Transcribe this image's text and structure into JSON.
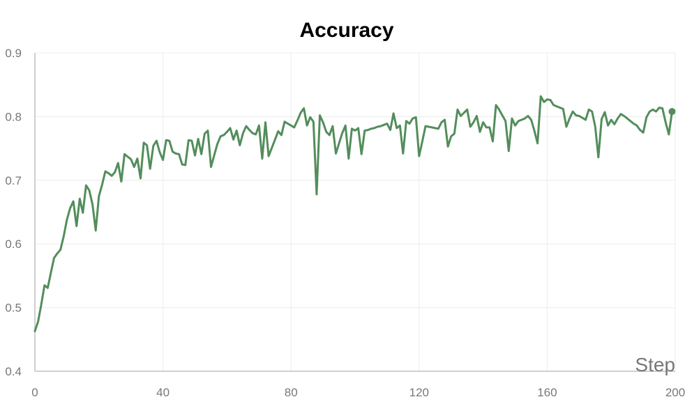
{
  "chart_data": {
    "type": "line",
    "title": "Accuracy",
    "xlabel": "Step",
    "ylabel": "",
    "xlim": [
      0,
      200
    ],
    "ylim": [
      0.4,
      0.9
    ],
    "xticks": [
      0,
      40,
      80,
      120,
      160,
      200
    ],
    "yticks": [
      0.4,
      0.5,
      0.6,
      0.7,
      0.8,
      0.9
    ],
    "xtick_labels": [
      "0",
      "40",
      "80",
      "120",
      "160",
      "200"
    ],
    "ytick_labels": [
      "0.4",
      "0.5",
      "0.6",
      "0.7",
      "0.8",
      "0.9"
    ],
    "grid": true,
    "legend": "none",
    "colors": {
      "series": "#538d5b",
      "grid": "#ececec",
      "axis": "#cfcfcf",
      "tick_text": "#777777"
    },
    "series": [
      {
        "x": [
          0,
          1,
          2,
          3,
          4,
          5,
          6,
          7,
          8,
          9,
          10,
          11,
          12,
          13,
          14,
          15,
          16,
          17,
          18,
          19,
          20,
          21,
          22,
          23,
          24,
          25,
          26,
          27,
          28,
          29,
          30,
          31,
          32,
          33,
          34,
          35,
          36,
          37,
          38,
          39,
          40,
          41,
          42,
          43,
          44,
          45,
          46,
          47,
          48,
          49,
          50,
          51,
          52,
          53,
          54,
          55,
          56,
          57,
          58,
          59,
          60,
          61,
          62,
          63,
          64,
          65,
          66,
          67,
          68,
          69,
          70,
          71,
          72,
          73,
          74,
          75,
          76,
          77,
          78,
          79,
          80,
          81,
          82,
          83,
          84,
          85,
          86,
          87,
          88,
          89,
          90,
          91,
          92,
          93,
          94,
          95,
          96,
          97,
          98,
          99,
          100,
          101,
          102,
          103,
          104,
          105,
          106,
          107,
          108,
          109,
          110,
          111,
          112,
          113,
          114,
          115,
          116,
          117,
          118,
          119,
          120,
          121,
          122,
          123,
          124,
          125,
          126,
          127,
          128,
          129,
          130,
          131,
          132,
          133,
          134,
          135,
          136,
          137,
          138,
          139,
          140,
          141,
          142,
          143,
          144,
          145,
          146,
          147,
          148,
          149,
          150,
          151,
          152,
          153,
          154,
          155,
          156,
          157,
          158,
          159,
          160,
          161,
          162,
          163,
          164,
          165,
          166,
          167,
          168,
          169,
          170,
          171,
          172,
          173,
          174,
          175,
          176,
          177,
          178,
          179,
          180,
          181,
          182,
          183,
          184,
          185,
          186,
          187,
          188,
          189,
          190,
          191,
          192,
          193,
          194,
          195,
          196,
          197,
          198,
          199
        ],
        "y": [
          0.463,
          0.478,
          0.505,
          0.535,
          0.531,
          0.555,
          0.578,
          0.585,
          0.591,
          0.612,
          0.638,
          0.656,
          0.667,
          0.628,
          0.671,
          0.649,
          0.692,
          0.684,
          0.662,
          0.621,
          0.675,
          0.693,
          0.714,
          0.711,
          0.707,
          0.713,
          0.727,
          0.698,
          0.741,
          0.737,
          0.733,
          0.721,
          0.734,
          0.703,
          0.759,
          0.755,
          0.718,
          0.754,
          0.762,
          0.744,
          0.732,
          0.763,
          0.762,
          0.745,
          0.742,
          0.741,
          0.725,
          0.724,
          0.763,
          0.762,
          0.739,
          0.765,
          0.741,
          0.773,
          0.778,
          0.721,
          0.739,
          0.757,
          0.769,
          0.771,
          0.776,
          0.782,
          0.764,
          0.778,
          0.755,
          0.774,
          0.785,
          0.779,
          0.774,
          0.772,
          0.786,
          0.734,
          0.791,
          0.738,
          0.751,
          0.764,
          0.777,
          0.771,
          0.792,
          0.789,
          0.786,
          0.783,
          0.794,
          0.806,
          0.813,
          0.786,
          0.799,
          0.792,
          0.678,
          0.802,
          0.791,
          0.776,
          0.771,
          0.785,
          0.742,
          0.758,
          0.774,
          0.786,
          0.734,
          0.781,
          0.778,
          0.782,
          0.741,
          0.778,
          0.779,
          0.781,
          0.782,
          0.784,
          0.785,
          0.787,
          0.789,
          0.779,
          0.805,
          0.782,
          0.786,
          0.742,
          0.793,
          0.789,
          0.797,
          0.799,
          0.738,
          0.761,
          0.785,
          0.784,
          0.783,
          0.782,
          0.781,
          0.791,
          0.795,
          0.753,
          0.769,
          0.773,
          0.811,
          0.801,
          0.806,
          0.811,
          0.784,
          0.791,
          0.801,
          0.776,
          0.791,
          0.783,
          0.783,
          0.761,
          0.818,
          0.811,
          0.802,
          0.793,
          0.746,
          0.797,
          0.786,
          0.793,
          0.795,
          0.797,
          0.801,
          0.795,
          0.778,
          0.758,
          0.832,
          0.823,
          0.827,
          0.826,
          0.818,
          0.816,
          0.814,
          0.812,
          0.784,
          0.797,
          0.808,
          0.802,
          0.801,
          0.798,
          0.795,
          0.811,
          0.808,
          0.784,
          0.736,
          0.796,
          0.807,
          0.786,
          0.795,
          0.788,
          0.797,
          0.804,
          0.801,
          0.797,
          0.793,
          0.789,
          0.786,
          0.779,
          0.775,
          0.799,
          0.808,
          0.811,
          0.808,
          0.814,
          0.813,
          0.791,
          0.772,
          0.808
        ]
      }
    ]
  }
}
